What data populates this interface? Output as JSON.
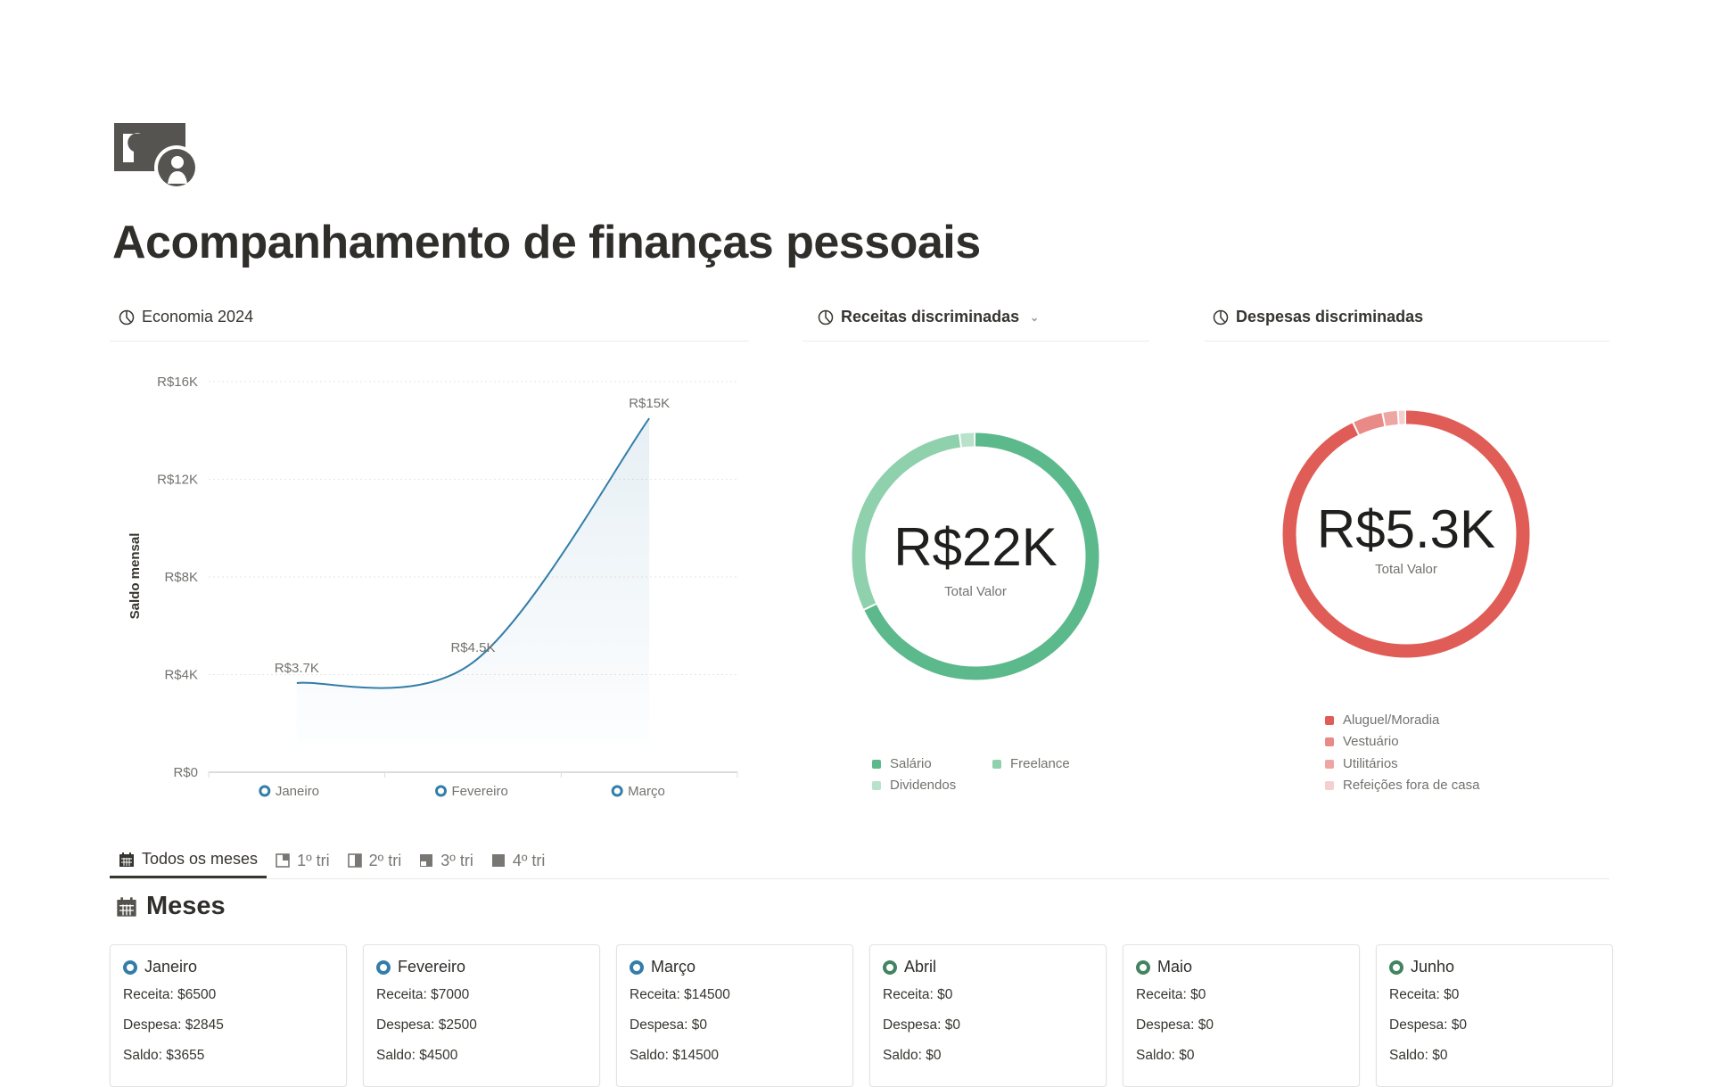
{
  "page": {
    "title": "Acompanhamento de finanças pessoais",
    "icon": "money-coin-icon"
  },
  "sections": {
    "economia": {
      "title": "Economia 2024",
      "icon": "pie-chart-clock-icon"
    },
    "receitas": {
      "title": "Receitas discriminadas",
      "icon": "pie-chart-clock-icon"
    },
    "despesas": {
      "title": "Despesas discriminadas",
      "icon": "pie-chart-clock-icon"
    }
  },
  "chart_data": [
    {
      "type": "area",
      "ylabel": "Saldo mensal",
      "categories": [
        "Janeiro",
        "Fevereiro",
        "Março"
      ],
      "values": [
        3655,
        4500,
        14500
      ],
      "data_labels": [
        "R$3.7K",
        "R$4.5K",
        "R$15K"
      ],
      "yticks": [
        0,
        4000,
        8000,
        12000,
        16000
      ],
      "ytick_labels": [
        "R$0",
        "R$4K",
        "R$8K",
        "R$12K",
        "R$16K"
      ],
      "ylim": [
        0,
        16000
      ],
      "grid": true,
      "legend": "bottom",
      "color": "#337ea9"
    },
    {
      "type": "pie",
      "center_value": "R$22K",
      "center_label": "Total Valor",
      "slices": [
        {
          "name": "Salário",
          "value": 68,
          "color": "#5bb98b"
        },
        {
          "name": "Freelance",
          "value": 30,
          "color": "#8fd0ad"
        },
        {
          "name": "Dividendos",
          "value": 2,
          "color": "#b8e2cb"
        }
      ],
      "legend": "bottom"
    },
    {
      "type": "pie",
      "center_value": "R$5.3K",
      "center_label": "Total Valor",
      "slices": [
        {
          "name": "Aluguel/Moradia",
          "value": 93,
          "color": "#e05d57"
        },
        {
          "name": "Vestuário",
          "value": 4,
          "color": "#e98a86"
        },
        {
          "name": "Utilitários",
          "value": 2,
          "color": "#eea6a3"
        },
        {
          "name": "Refeições fora de casa",
          "value": 1,
          "color": "#f5cfcd"
        }
      ],
      "legend": "bottom"
    }
  ],
  "tabs": [
    {
      "label": "Todos os meses",
      "icon": "calendar-icon",
      "active": true
    },
    {
      "label": "1º tri",
      "icon": "quarter-1-icon"
    },
    {
      "label": "2º tri",
      "icon": "quarter-2-icon"
    },
    {
      "label": "3º tri",
      "icon": "quarter-3-icon"
    },
    {
      "label": "4º tri",
      "icon": "quarter-4-icon"
    }
  ],
  "meses": {
    "title": "Meses",
    "cards": [
      {
        "name": "Janeiro",
        "status_color": "#337ea9",
        "receita": "Receita: $6500",
        "despesa": "Despesa: $2845",
        "saldo": "Saldo: $3655"
      },
      {
        "name": "Fevereiro",
        "status_color": "#337ea9",
        "receita": "Receita: $7000",
        "despesa": "Despesa: $2500",
        "saldo": "Saldo: $4500"
      },
      {
        "name": "Março",
        "status_color": "#337ea9",
        "receita": "Receita: $14500",
        "despesa": "Despesa: $0",
        "saldo": "Saldo: $14500"
      },
      {
        "name": "Abril",
        "status_color": "#448361",
        "receita": "Receita: $0",
        "despesa": "Despesa: $0",
        "saldo": "Saldo: $0"
      },
      {
        "name": "Maio",
        "status_color": "#448361",
        "receita": "Receita: $0",
        "despesa": "Despesa: $0",
        "saldo": "Saldo: $0"
      },
      {
        "name": "Junho",
        "status_color": "#448361",
        "receita": "Receita: $0",
        "despesa": "Despesa: $0",
        "saldo": "Saldo: $0"
      }
    ]
  }
}
